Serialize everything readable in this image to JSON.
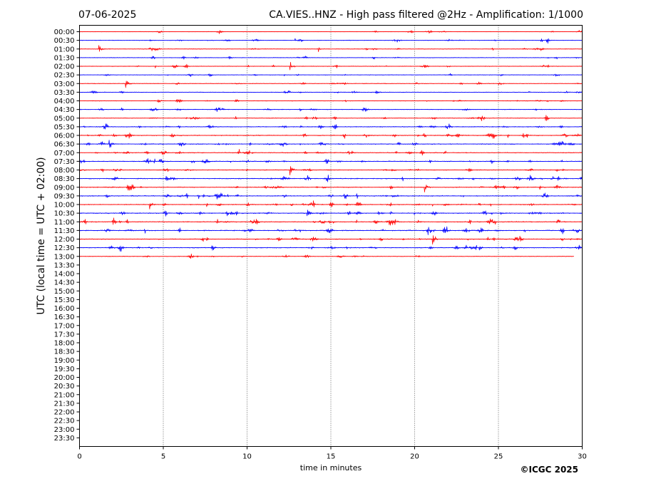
{
  "header": {
    "date": "07-06-2025",
    "station_title": "CA.VIES..HNZ - High pass filtered @2Hz - Amplification: 1/1000"
  },
  "footer": {
    "copyright": "©ICGC 2025"
  },
  "colors": {
    "red_trace": "#ff0000",
    "blue_trace": "#0000ff",
    "gridline": "#000000",
    "background": "#ffffff"
  },
  "chart_data": {
    "type": "helicorder",
    "xlabel": "time in minutes",
    "ylabel": "UTC (local time = UTC + 02:00)",
    "xlim": [
      0,
      30
    ],
    "x_ticks": [
      0,
      5,
      10,
      15,
      20,
      25,
      30
    ],
    "grid": "vertical dotted at 5-minute ticks",
    "rows": [
      "00:00",
      "00:30",
      "01:00",
      "01:30",
      "02:00",
      "02:30",
      "03:00",
      "03:30",
      "04:00",
      "04:30",
      "05:00",
      "05:30",
      "06:00",
      "06:30",
      "07:00",
      "07:30",
      "08:00",
      "08:30",
      "09:00",
      "09:30",
      "10:00",
      "10:30",
      "11:00",
      "11:30",
      "12:00",
      "12:30",
      "13:00",
      "13:30",
      "14:00",
      "14:30",
      "15:00",
      "15:30",
      "16:00",
      "16:30",
      "17:00",
      "17:30",
      "18:00",
      "18:30",
      "19:00",
      "19:30",
      "20:00",
      "20:30",
      "21:00",
      "21:30",
      "22:00",
      "22:30",
      "23:00",
      "23:30"
    ],
    "trace_rows": 27,
    "last_trace_end_minutes": 29.5,
    "row_colors": [
      "red",
      "blue"
    ],
    "row_activity": [
      0.3,
      0.4,
      0.4,
      0.35,
      0.45,
      0.35,
      0.4,
      0.4,
      0.45,
      0.5,
      0.5,
      0.7,
      0.85,
      0.8,
      0.7,
      0.75,
      0.7,
      0.8,
      0.75,
      0.85,
      0.85,
      0.9,
      0.9,
      0.9,
      0.8,
      0.75,
      0.4
    ],
    "notable_events": [
      {
        "row": "00:30",
        "minute": 27.9
      },
      {
        "row": "01:00",
        "minute": 1.2
      },
      {
        "row": "02:00",
        "minute": 12.6
      },
      {
        "row": "03:00",
        "minute": 2.8
      },
      {
        "row": "05:00",
        "minute": 27.8
      },
      {
        "row": "06:00",
        "minute": 2.9
      },
      {
        "row": "06:30",
        "minute": 1.8
      },
      {
        "row": "08:00",
        "minute": 12.6
      },
      {
        "row": "08:30",
        "minute": 26.9
      },
      {
        "row": "09:00",
        "minute": 20.6
      },
      {
        "row": "10:00",
        "minute": 4.2
      },
      {
        "row": "10:30",
        "minute": 13.6
      },
      {
        "row": "11:00",
        "minute": 2.0
      },
      {
        "row": "12:00",
        "minute": 21.1
      },
      {
        "row": "12:30",
        "minute": 7.9
      },
      {
        "row": "12:30",
        "minute": 29.7
      }
    ]
  }
}
